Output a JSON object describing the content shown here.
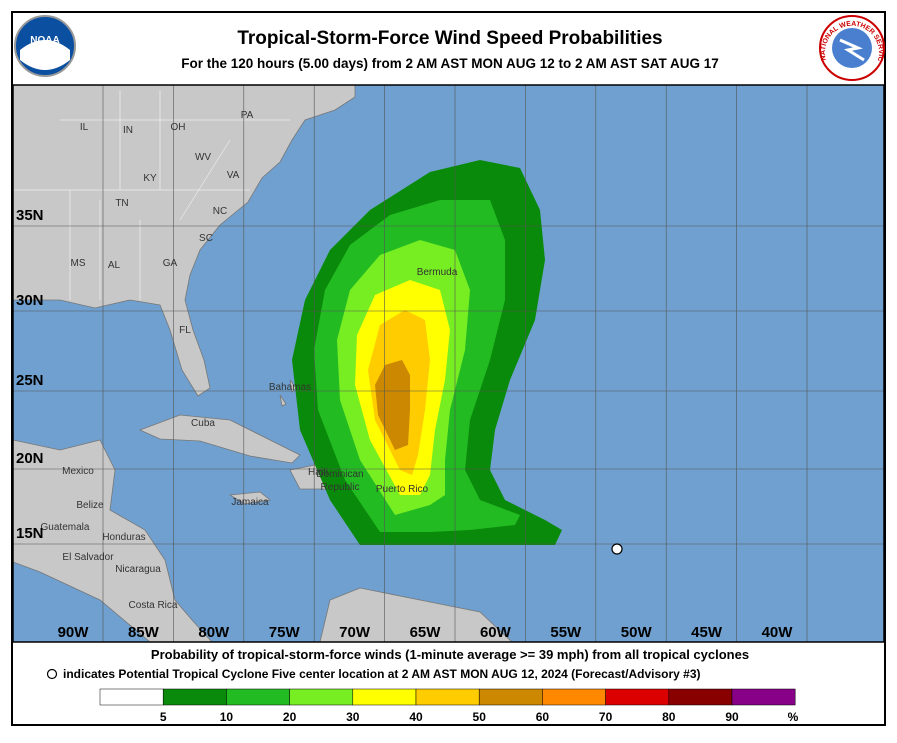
{
  "header": {
    "title": "Tropical-Storm-Force Wind Speed Probabilities",
    "subtitle": "For the 120 hours (5.00 days) from 2 AM AST MON AUG 12 to 2 AM AST SAT AUG 17"
  },
  "logos": {
    "left": "NOAA",
    "right": "NATIONAL WEATHER SERVICE"
  },
  "map": {
    "longitude_labels": [
      "90W",
      "85W",
      "80W",
      "75W",
      "70W",
      "65W",
      "60W",
      "55W",
      "50W",
      "45W",
      "40W"
    ],
    "latitude_labels": [
      "35N",
      "30N",
      "25N",
      "20N",
      "15N"
    ],
    "places": [
      "IL",
      "IN",
      "OH",
      "PA",
      "WV",
      "VA",
      "KY",
      "TN",
      "NC",
      "SC",
      "MS",
      "AL",
      "GA",
      "FL",
      "Bermuda",
      "Bahamas",
      "Cuba",
      "Mexico",
      "Belize",
      "Guatemala",
      "Honduras",
      "El Salvador",
      "Nicaragua",
      "Costa Rica",
      "Jamaica",
      "Haiti",
      "Dominican",
      "Republic",
      "Puerto Rico"
    ]
  },
  "footer": {
    "line1": "Probability of tropical-storm-force winds (1-minute average >= 39 mph) from all tropical cyclones",
    "line2": "indicates Potential Tropical Cyclone Five center location at 2 AM AST MON AUG 12, 2024 (Forecast/Advisory #3)"
  },
  "legend": {
    "colors": [
      "#ffffff",
      "#0a8a0a",
      "#22bb22",
      "#77ee22",
      "#ffff00",
      "#ffcc00",
      "#cc8800",
      "#ff8800",
      "#dd0000",
      "#880000",
      "#880088"
    ],
    "labels": [
      "5",
      "10",
      "20",
      "30",
      "40",
      "50",
      "60",
      "70",
      "80",
      "90"
    ],
    "unit": "%"
  }
}
